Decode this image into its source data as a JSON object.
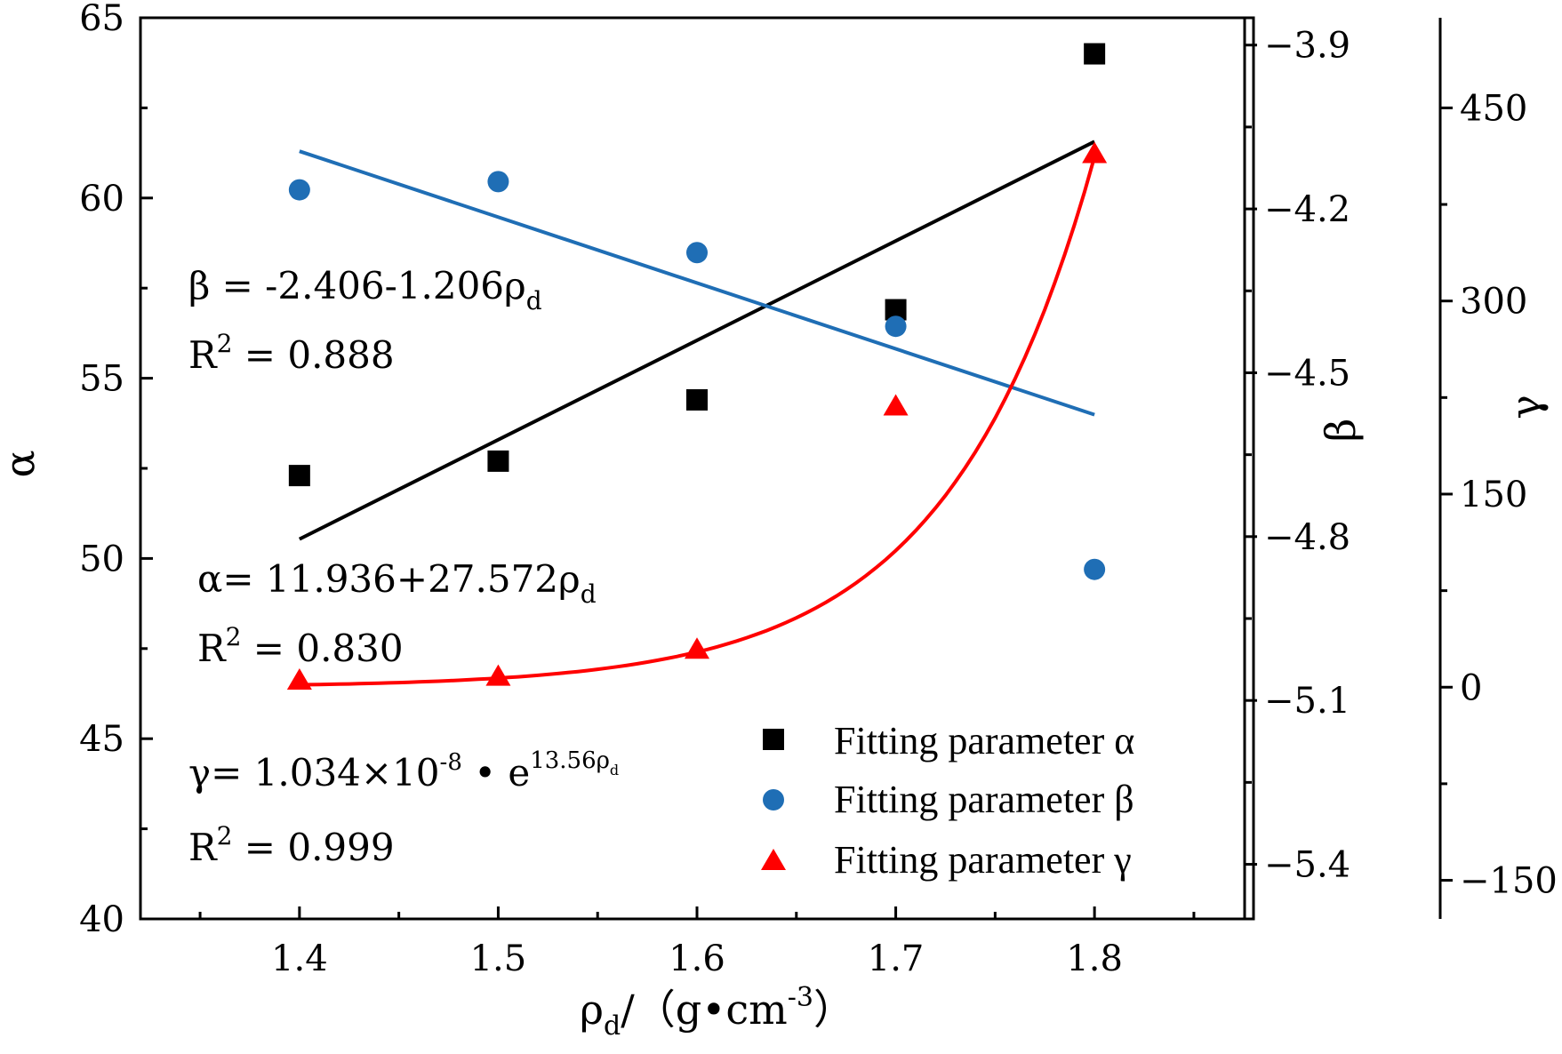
{
  "chart_data": {
    "type": "scatter",
    "x": [
      1.4,
      1.5,
      1.6,
      1.7,
      1.8
    ],
    "xlim": [
      1.32,
      1.88
    ],
    "xticks": [
      "1.4",
      "1.5",
      "1.6",
      "1.7",
      "1.8"
    ],
    "xlabel": {
      "sym": "ρ",
      "sub": "d",
      "unit": "/（g•cm",
      "exp": "-3",
      "close": "）"
    },
    "axes": {
      "alpha": {
        "label": "α",
        "ylim": [
          40,
          65
        ],
        "ticks": [
          "40",
          "45",
          "50",
          "55",
          "60",
          "65"
        ]
      },
      "beta": {
        "label": "β",
        "ylim": [
          -5.5,
          -3.85
        ],
        "ticks": [
          "-5.4",
          "-5.1",
          "-4.8",
          "-4.5",
          "-4.2",
          "-3.9"
        ]
      },
      "gamma": {
        "label": "γ",
        "ylim": [
          -180,
          520
        ],
        "ticks": [
          "-150",
          "0",
          "150",
          "300",
          "450"
        ]
      }
    },
    "series": [
      {
        "name": "Fitting parameter α",
        "symbol": "square",
        "color": "#000000",
        "axis": "alpha",
        "values": [
          52.3,
          52.7,
          54.4,
          56.9,
          64.0
        ],
        "fit": {
          "type": "linear",
          "a": 11.936,
          "b": 27.572
        }
      },
      {
        "name": "Fitting parameter β",
        "symbol": "circle",
        "color": "#1f6eb5",
        "axis": "beta",
        "values": [
          -4.165,
          -4.15,
          -4.28,
          -4.415,
          -4.86
        ],
        "fit": {
          "type": "linear",
          "a": -2.406,
          "b": -1.206
        }
      },
      {
        "name": "Fitting parameter γ",
        "symbol": "triangle",
        "color": "#ff0000",
        "axis": "gamma",
        "values": [
          5,
          8,
          29,
          218,
          414
        ],
        "fit": {
          "type": "exp",
          "a": 1.034e-08,
          "b": 13.56
        }
      }
    ],
    "annotations": {
      "beta_eq": {
        "sym": "β",
        "text": " = -2.406-1.206ρ",
        "sub": "d"
      },
      "beta_r2": {
        "pre": "R",
        "sup": "2",
        "text": " = 0.888"
      },
      "alpha_eq": {
        "sym": "α",
        "text": "= 11.936+27.572ρ",
        "sub": "d"
      },
      "alpha_r2": {
        "pre": "R",
        "sup": "2",
        "text": " = 0.830"
      },
      "gamma_eq": {
        "sym": "γ",
        "text": "= 1.034×10",
        "exp": "-8",
        "mid": " • e",
        "exp2": "13.56ρ",
        "sub2": "d"
      },
      "gamma_r2": {
        "pre": "R",
        "sup": "2",
        "text": " = 0.999"
      }
    },
    "legend": {
      "position": "bottom-right"
    }
  }
}
